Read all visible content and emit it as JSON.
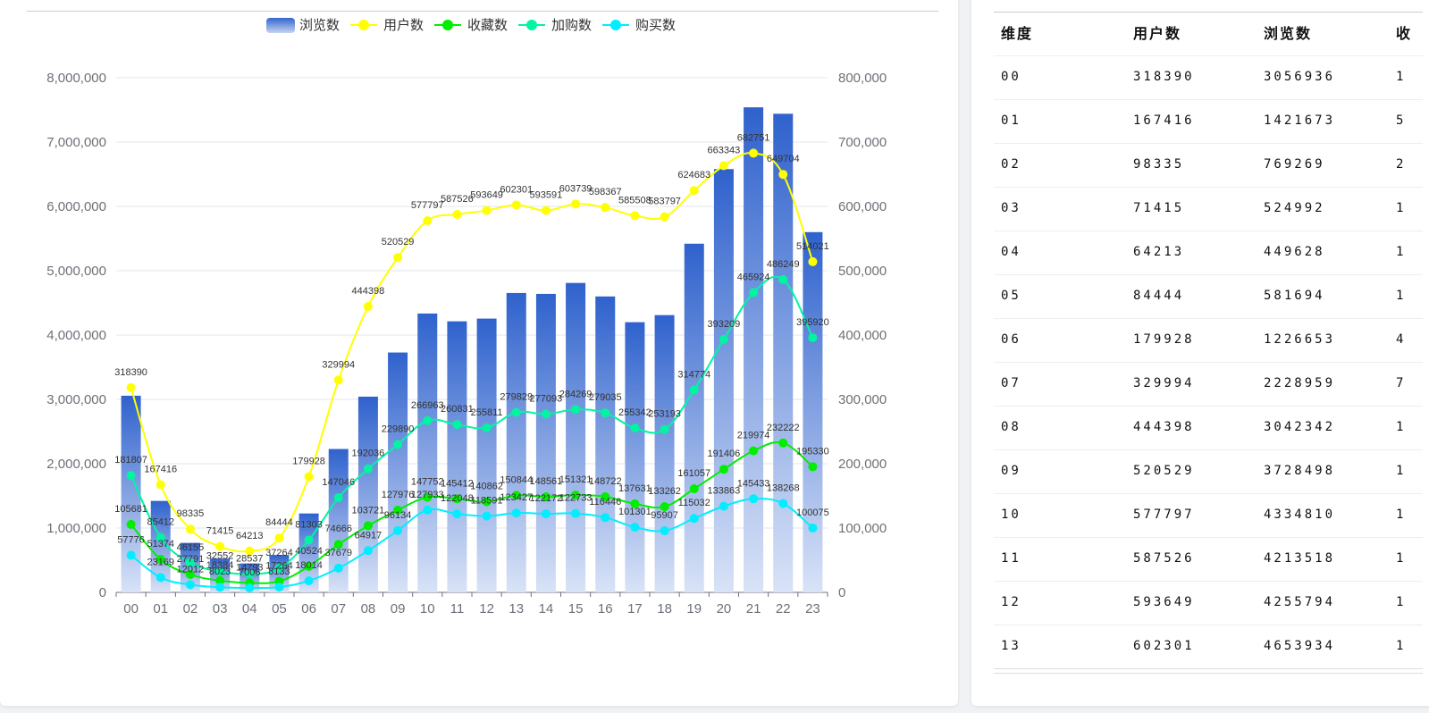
{
  "chart_data": {
    "type": "bar",
    "categories": [
      "00",
      "01",
      "02",
      "03",
      "04",
      "05",
      "06",
      "07",
      "08",
      "09",
      "10",
      "11",
      "12",
      "13",
      "14",
      "15",
      "16",
      "17",
      "18",
      "19",
      "20",
      "21",
      "22",
      "23"
    ],
    "y_left_ticks": [
      "0",
      "1,000,000",
      "2,000,000",
      "3,000,000",
      "4,000,000",
      "5,000,000",
      "6,000,000",
      "7,000,000",
      "8,000,000"
    ],
    "y_right_ticks": [
      "0",
      "100,000",
      "200,000",
      "300,000",
      "400,000",
      "500,000",
      "600,000",
      "700,000",
      "800,000"
    ],
    "ylim_left": [
      0,
      8000000
    ],
    "ylim_right": [
      0,
      800000
    ],
    "legend_position": "top-center",
    "series": [
      {
        "name": "浏览数",
        "type": "bar",
        "axis": "left",
        "color": "#3366cc",
        "values": [
          3056936,
          1421673,
          769269,
          524992,
          449628,
          581694,
          1226653,
          2228959,
          3042342,
          3728498,
          4334810,
          4213518,
          4255794,
          4653934,
          4640000,
          4810000,
          4600000,
          4200000,
          4310000,
          5420000,
          6580000,
          7540000,
          7440000,
          5600000
        ]
      },
      {
        "name": "用户数",
        "type": "line",
        "axis": "right",
        "color": "#ffff00",
        "values": [
          318390,
          167416,
          98335,
          71415,
          64213,
          84444,
          179928,
          329994,
          444398,
          520529,
          577797,
          587526,
          593649,
          602301,
          593591,
          603739,
          598367,
          585508,
          583797,
          624683,
          663343,
          682751,
          649704,
          514021
        ]
      },
      {
        "name": "收藏数",
        "type": "line",
        "axis": "right",
        "color": "#00ee00",
        "values": [
          105681,
          51374,
          27791,
          18384,
          14793,
          17264,
          40524,
          74666,
          103721,
          127976,
          147752,
          145412,
          140862,
          150844,
          148561,
          151321,
          148722,
          137631,
          133262,
          161057,
          191406,
          219974,
          232222,
          195330
        ]
      },
      {
        "name": "加购数",
        "type": "line",
        "axis": "right",
        "color": "#00f5a0",
        "values": [
          181807,
          85412,
          46155,
          32552,
          28537,
          37264,
          81303,
          147046,
          192036,
          229890,
          266963,
          260831,
          255811,
          279829,
          277093,
          284269,
          279035,
          255342,
          253193,
          314774,
          393209,
          465924,
          486249,
          395920
        ]
      },
      {
        "name": "购买数",
        "type": "line",
        "axis": "right",
        "color": "#00eeff",
        "values": [
          57776,
          23169,
          12012,
          8023,
          7006,
          8133,
          18014,
          37679,
          64917,
          96134,
          127933,
          122048,
          118591,
          123427,
          122172,
          122733,
          116446,
          101301,
          95907,
          115032,
          133863,
          145433,
          138268,
          100075
        ]
      }
    ]
  },
  "table": {
    "headers": [
      "维度",
      "用户数",
      "浏览数",
      "收"
    ],
    "rows": [
      [
        "00",
        "318390",
        "3056936",
        "1"
      ],
      [
        "01",
        "167416",
        "1421673",
        "5"
      ],
      [
        "02",
        "98335",
        "769269",
        "2"
      ],
      [
        "03",
        "71415",
        "524992",
        "1"
      ],
      [
        "04",
        "64213",
        "449628",
        "1"
      ],
      [
        "05",
        "84444",
        "581694",
        "1"
      ],
      [
        "06",
        "179928",
        "1226653",
        "4"
      ],
      [
        "07",
        "329994",
        "2228959",
        "7"
      ],
      [
        "08",
        "444398",
        "3042342",
        "1"
      ],
      [
        "09",
        "520529",
        "3728498",
        "1"
      ],
      [
        "10",
        "577797",
        "4334810",
        "1"
      ],
      [
        "11",
        "587526",
        "4213518",
        "1"
      ],
      [
        "12",
        "593649",
        "4255794",
        "1"
      ],
      [
        "13",
        "602301",
        "4653934",
        "1"
      ]
    ]
  }
}
